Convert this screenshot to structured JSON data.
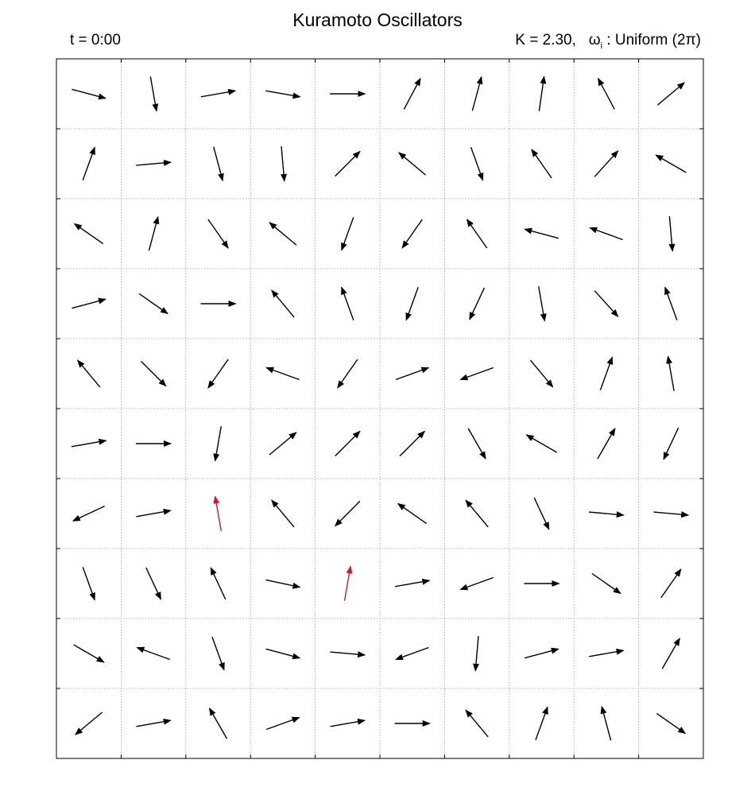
{
  "chart_data": {
    "type": "quiver",
    "title": "Kuramoto Oscillators",
    "time_label": "t = 0:00",
    "coupling_label": "K = 2.30,",
    "omega_symbol": "ω",
    "omega_subscript": "i",
    "omega_distribution": ": Uniform (2π)",
    "grid": true,
    "rows": 10,
    "cols": 10,
    "colors": {
      "oscillator": "#000000",
      "highlight": "#e0102a",
      "grid": "#9a9a9a"
    },
    "phases_deg": [
      [
        -15,
        -80,
        10,
        -10,
        0,
        62,
        75,
        82,
        118,
        40
      ],
      [
        70,
        5,
        -75,
        -85,
        45,
        140,
        -70,
        125,
        48,
        150
      ],
      [
        145,
        75,
        -55,
        140,
        -110,
        -125,
        125,
        165,
        160,
        -85
      ],
      [
        15,
        -35,
        0,
        130,
        110,
        -110,
        -115,
        -80,
        -48,
        110
      ],
      [
        130,
        -45,
        -125,
        160,
        -125,
        20,
        -160,
        -50,
        70,
        100
      ],
      [
        10,
        0,
        -100,
        40,
        45,
        45,
        -60,
        150,
        60,
        -115
      ],
      [
        -155,
        10,
        100,
        130,
        -135,
        145,
        130,
        -65,
        -5,
        -5
      ],
      [
        -70,
        -65,
        115,
        -12,
        80,
        10,
        -160,
        0,
        -35,
        55
      ],
      [
        -30,
        160,
        -70,
        -15,
        -5,
        -160,
        -95,
        15,
        10,
        60
      ],
      [
        -140,
        10,
        120,
        20,
        10,
        0,
        130,
        70,
        105,
        -35
      ]
    ],
    "highlighted": [
      [
        6,
        2
      ],
      [
        7,
        4
      ]
    ]
  }
}
